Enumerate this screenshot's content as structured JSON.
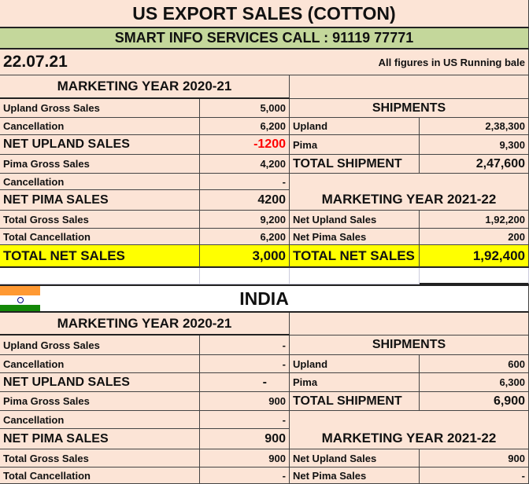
{
  "title": "US EXPORT SALES (COTTON)",
  "subtitle": "SMART INFO SERVICES CALL : 91119 77771",
  "date": "22.07.21",
  "note": "All figures in US Running bale",
  "colors": {
    "background": "#fce4d6",
    "banner": "#c4d79b",
    "highlight": "#ffff00",
    "negative": "#ff0000"
  },
  "us": {
    "my_header": "MARKETING YEAR 2020-21",
    "rows": [
      {
        "label": "Upland Gross Sales",
        "value": "5,000"
      },
      {
        "label": "Cancellation",
        "value": "6,200"
      },
      {
        "label": "NET UPLAND SALES",
        "value": "-1200"
      },
      {
        "label": "Pima Gross Sales",
        "value": "4,200"
      },
      {
        "label": "Cancellation",
        "value": "-"
      },
      {
        "label": "NET PIMA SALES",
        "value": "4200"
      },
      {
        "label": "Total Gross Sales",
        "value": "9,200"
      },
      {
        "label": "Total Cancellation",
        "value": "6,200"
      },
      {
        "label": "TOTAL NET SALES",
        "value": "3,000"
      }
    ],
    "shipments_header": "SHIPMENTS",
    "shipments": [
      {
        "label": "Upland",
        "value": "2,38,300"
      },
      {
        "label": "Pima",
        "value": "9,300"
      },
      {
        "label": "TOTAL SHIPMENT",
        "value": "2,47,600"
      }
    ],
    "next_my_header": "MARKETING YEAR 2021-22",
    "next": [
      {
        "label": "Net Upland Sales",
        "value": "1,92,200"
      },
      {
        "label": "Net Pima Sales",
        "value": "200"
      },
      {
        "label": "TOTAL NET SALES",
        "value": "1,92,400"
      }
    ]
  },
  "india": {
    "title": "INDIA",
    "flag_icon": "india-flag-icon",
    "my_header": "MARKETING YEAR 2020-21",
    "rows": [
      {
        "label": "Upland Gross Sales",
        "value": "-"
      },
      {
        "label": "Cancellation",
        "value": "-"
      },
      {
        "label": "NET UPLAND SALES",
        "value": "-"
      },
      {
        "label": "Pima Gross Sales",
        "value": "900"
      },
      {
        "label": "Cancellation",
        "value": "-"
      },
      {
        "label": "NET PIMA SALES",
        "value": "900"
      },
      {
        "label": "Total Gross Sales",
        "value": "900"
      },
      {
        "label": "Total Cancellation",
        "value": "-"
      }
    ],
    "shipments_header": "SHIPMENTS",
    "shipments": [
      {
        "label": "Upland",
        "value": "600"
      },
      {
        "label": "Pima",
        "value": "6,300"
      },
      {
        "label": "TOTAL SHIPMENT",
        "value": "6,900"
      }
    ],
    "next_my_header": "MARKETING YEAR 2021-22",
    "next": [
      {
        "label": "Net Upland Sales",
        "value": "900"
      },
      {
        "label": "Net Pima Sales",
        "value": "-"
      }
    ]
  }
}
